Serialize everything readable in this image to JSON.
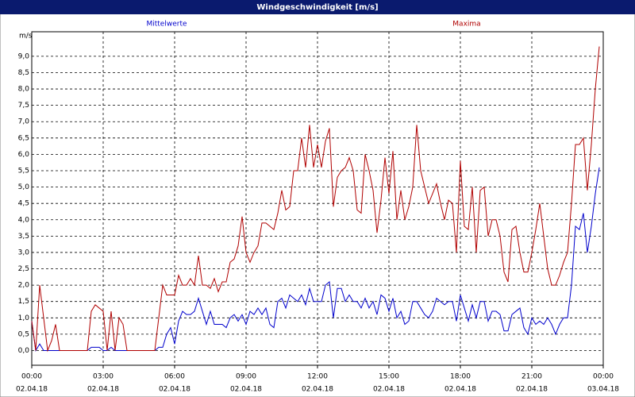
{
  "chart_data": {
    "type": "line",
    "title": "Windgeschwindigkeit [m/s]",
    "y_unit": "m/s",
    "grid": true,
    "x": [
      0,
      10,
      20,
      30,
      40,
      50,
      60,
      70,
      80,
      90,
      100,
      110,
      120,
      130,
      140,
      150,
      160,
      170,
      180,
      190,
      200,
      210,
      220,
      230,
      240,
      250,
      260,
      270,
      280,
      290,
      300,
      310,
      320,
      330,
      340,
      350,
      360,
      370,
      380,
      390,
      400,
      410,
      420,
      430,
      440,
      450,
      460,
      470,
      480,
      490,
      500,
      510,
      520,
      530,
      540,
      550,
      560,
      570,
      580,
      590,
      600,
      610,
      620,
      630,
      640,
      650,
      660,
      670,
      680,
      690,
      700,
      710,
      720,
      730,
      740,
      750,
      760,
      770,
      780,
      790,
      800,
      810,
      820,
      830,
      840,
      850,
      860,
      870,
      880,
      890,
      900,
      910,
      920,
      930,
      940,
      950,
      960,
      970,
      980,
      990,
      1000,
      1010,
      1020,
      1030,
      1040,
      1050,
      1060,
      1070,
      1080,
      1090,
      1100,
      1110,
      1120,
      1130,
      1140,
      1150,
      1160,
      1170,
      1180,
      1190,
      1200,
      1210,
      1220,
      1230,
      1240,
      1250,
      1260,
      1270,
      1280,
      1290,
      1300,
      1310,
      1320,
      1330,
      1340,
      1350,
      1360,
      1370,
      1380,
      1390,
      1400,
      1410,
      1420,
      1430
    ],
    "xlim": [
      0,
      1440
    ],
    "xticks": [
      {
        "value": 0,
        "label": "00:00"
      },
      {
        "value": 180,
        "label": "03:00"
      },
      {
        "value": 360,
        "label": "06:00"
      },
      {
        "value": 540,
        "label": "09:00"
      },
      {
        "value": 720,
        "label": "12:00"
      },
      {
        "value": 900,
        "label": "15:00"
      },
      {
        "value": 1080,
        "label": "18:00"
      },
      {
        "value": 1260,
        "label": "21:00"
      },
      {
        "value": 1440,
        "label": "00:00"
      }
    ],
    "xtick_dates": [
      "02.04.18",
      "02.04.18",
      "02.04.18",
      "02.04.18",
      "02.04.18",
      "02.04.18",
      "02.04.18",
      "02.04.18",
      "03.04.18"
    ],
    "ylim": [
      -0.45,
      9.75
    ],
    "yticks": [
      {
        "value": 0,
        "label": "0,0"
      },
      {
        "value": 0.5,
        "label": "0,5"
      },
      {
        "value": 1,
        "label": "1,0"
      },
      {
        "value": 1.5,
        "label": "1,5"
      },
      {
        "value": 2,
        "label": "2,0"
      },
      {
        "value": 2.5,
        "label": "2,5"
      },
      {
        "value": 3,
        "label": "3,0"
      },
      {
        "value": 3.5,
        "label": "3,5"
      },
      {
        "value": 4,
        "label": "4,0"
      },
      {
        "value": 4.5,
        "label": "4,5"
      },
      {
        "value": 5,
        "label": "5,0"
      },
      {
        "value": 5.5,
        "label": "5,5"
      },
      {
        "value": 6,
        "label": "6,0"
      },
      {
        "value": 6.5,
        "label": "6,5"
      },
      {
        "value": 7,
        "label": "7,0"
      },
      {
        "value": 7.5,
        "label": "7,5"
      },
      {
        "value": 8,
        "label": "8,0"
      },
      {
        "value": 8.5,
        "label": "8,5"
      },
      {
        "value": 9,
        "label": "9,0"
      }
    ],
    "series": [
      {
        "name": "Mittelwerte",
        "color": "#0000cc",
        "values": [
          0.9,
          0,
          0.2,
          0,
          0,
          0,
          0,
          0,
          0,
          0,
          0,
          0,
          0,
          0,
          0,
          0.1,
          0.1,
          0.1,
          0,
          0,
          0.1,
          0,
          0,
          0,
          0,
          0,
          0,
          0,
          0,
          0,
          0,
          0,
          0.1,
          0.1,
          0.5,
          0.7,
          0.2,
          0.9,
          1.2,
          1.1,
          1.1,
          1.2,
          1.6,
          1.2,
          0.8,
          1.2,
          0.8,
          0.8,
          0.8,
          0.7,
          1.0,
          1.1,
          0.9,
          1.1,
          0.8,
          1.2,
          1.1,
          1.3,
          1.1,
          1.3,
          0.8,
          0.7,
          1.5,
          1.6,
          1.3,
          1.7,
          1.6,
          1.5,
          1.7,
          1.4,
          1.9,
          1.5,
          1.5,
          1.5,
          2.0,
          2.1,
          1.0,
          1.9,
          1.9,
          1.5,
          1.7,
          1.5,
          1.5,
          1.3,
          1.6,
          1.3,
          1.5,
          1.1,
          1.7,
          1.6,
          1.2,
          1.6,
          1.0,
          1.2,
          0.8,
          0.9,
          1.5,
          1.5,
          1.3,
          1.1,
          1.0,
          1.2,
          1.6,
          1.5,
          1.4,
          1.5,
          1.5,
          0.9,
          1.7,
          1.3,
          0.9,
          1.4,
          1.0,
          1.5,
          1.5,
          0.9,
          1.2,
          1.2,
          1.1,
          0.6,
          0.6,
          1.1,
          1.2,
          1.3,
          0.7,
          0.5,
          1.0,
          0.8,
          0.9,
          0.8,
          1.0,
          0.8,
          0.5,
          0.8,
          1.0,
          1.0,
          2.0,
          3.8,
          3.7,
          4.2,
          3.0,
          3.8,
          4.8,
          5.6
        ]
      },
      {
        "name": "Maxima",
        "color": "#b00000",
        "values": [
          0.9,
          0,
          2.0,
          1.0,
          0,
          0.3,
          0.8,
          0,
          0,
          0,
          0,
          0,
          0,
          0,
          0,
          1.2,
          1.4,
          1.3,
          1.2,
          0,
          1.2,
          0,
          1.0,
          0.8,
          0,
          0,
          0,
          0,
          0,
          0,
          0,
          0,
          1.0,
          2.0,
          1.7,
          1.7,
          1.7,
          2.3,
          2.0,
          2.0,
          2.2,
          2.0,
          2.9,
          2.0,
          2.0,
          1.9,
          2.2,
          1.8,
          2.1,
          2.1,
          2.7,
          2.8,
          3.2,
          4.1,
          3.0,
          2.7,
          3.0,
          3.2,
          3.9,
          3.9,
          3.8,
          3.7,
          4.2,
          4.9,
          4.3,
          4.4,
          5.5,
          5.5,
          6.5,
          5.6,
          6.9,
          5.6,
          6.3,
          5.6,
          6.4,
          6.8,
          4.4,
          5.3,
          5.5,
          5.6,
          5.9,
          5.5,
          4.3,
          4.2,
          6.0,
          5.5,
          4.9,
          3.6,
          4.6,
          5.9,
          4.8,
          6.1,
          4.0,
          4.9,
          4.0,
          4.4,
          5.0,
          6.9,
          5.5,
          5.0,
          4.5,
          4.8,
          5.1,
          4.5,
          4.0,
          4.6,
          4.5,
          3.0,
          5.8,
          3.8,
          3.7,
          5.0,
          3.0,
          4.9,
          5.0,
          3.5,
          4.0,
          4.0,
          3.5,
          2.4,
          2.1,
          3.7,
          3.8,
          3.0,
          2.4,
          2.4,
          3.0,
          3.7,
          4.5,
          3.5,
          2.5,
          2.0,
          2.0,
          2.3,
          2.7,
          3.0,
          4.5,
          6.3,
          6.3,
          6.5,
          4.9,
          6.3,
          8.0,
          9.3
        ]
      }
    ]
  }
}
